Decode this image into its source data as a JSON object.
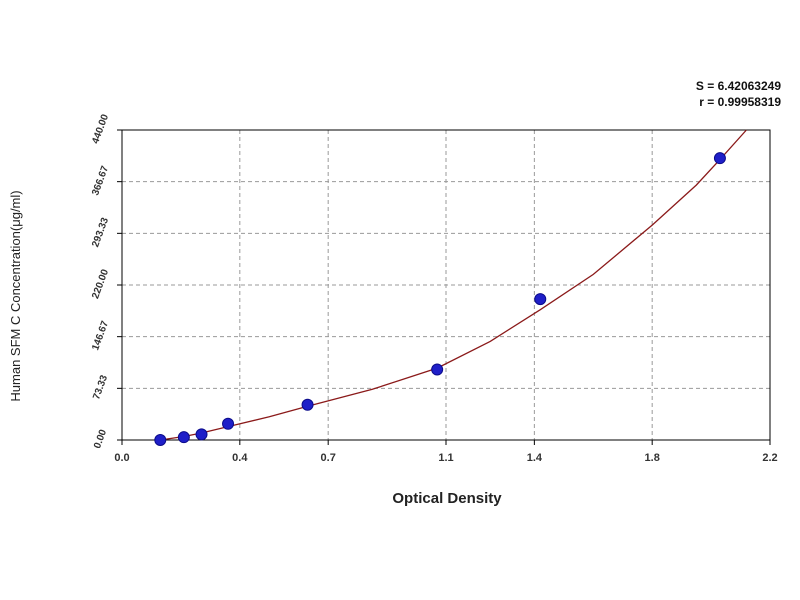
{
  "chart_data": {
    "type": "scatter",
    "title": "",
    "xlabel": "Optical Density",
    "ylabel": "Human SFM C Concentration(μg/ml)",
    "xlim": [
      0.0,
      2.2
    ],
    "ylim": [
      0.0,
      440.0
    ],
    "x_ticks": [
      "0.0",
      "0.4",
      "0.7",
      "1.1",
      "1.4",
      "1.8",
      "2.2"
    ],
    "y_ticks": [
      "0.00",
      "73.33",
      "146.67",
      "220.00",
      "293.33",
      "366.67",
      "440.00"
    ],
    "grid": true,
    "stats": [
      "S = 6.42063249",
      "r = 0.99958319"
    ],
    "points": {
      "x": [
        0.13,
        0.21,
        0.27,
        0.36,
        0.63,
        1.07,
        1.42,
        2.03
      ],
      "y": [
        0.0,
        4.0,
        8.0,
        23.0,
        50.0,
        100.0,
        200.0,
        400.0
      ]
    },
    "fit": {
      "x": [
        0.13,
        0.21,
        0.27,
        0.36,
        0.5,
        0.63,
        0.85,
        1.07,
        1.25,
        1.42,
        1.6,
        1.8,
        1.95,
        2.03,
        2.12
      ],
      "y": [
        0.0,
        5.0,
        10.0,
        19.0,
        33.0,
        48.0,
        72.0,
        102.0,
        140.0,
        185.0,
        235.0,
        305.0,
        362.0,
        398.0,
        440.0
      ]
    },
    "colors": {
      "point": "#1f1fc8",
      "point_edge": "#0c0c8a",
      "curve": "#8b1a1a",
      "grid": "#9a9a9a",
      "axis": "#000000"
    }
  }
}
